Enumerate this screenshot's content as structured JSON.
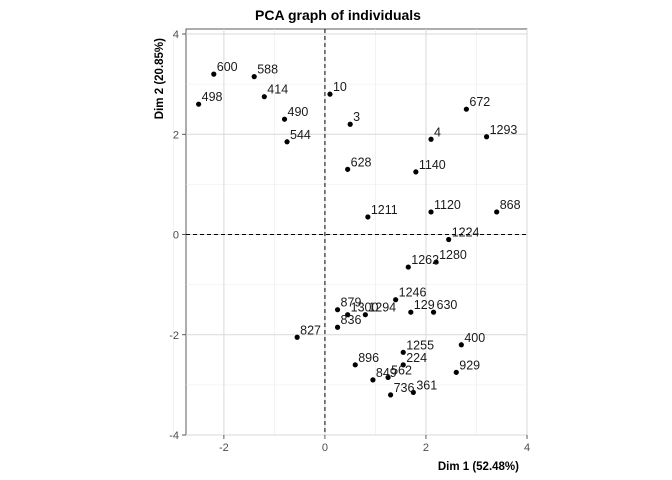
{
  "chart_data": {
    "type": "scatter",
    "title": "PCA graph of individuals",
    "xlabel": "Dim 1 (52.48%)",
    "ylabel": "Dim 2 (20.85%)",
    "xlim": [
      -2.75,
      4.0
    ],
    "ylim": [
      -4.0,
      4.1
    ],
    "xticks": [
      -2,
      0,
      2,
      4
    ],
    "yticks": [
      -4,
      -2,
      0,
      2,
      4
    ],
    "reference_lines": {
      "x": 0,
      "y": 0,
      "style": "dashed"
    },
    "grid": true,
    "points": [
      {
        "label": "10",
        "x": 0.1,
        "y": 2.8
      },
      {
        "label": "3",
        "x": 0.5,
        "y": 2.2
      },
      {
        "label": "4",
        "x": 2.1,
        "y": 1.9
      },
      {
        "label": "672",
        "x": 2.8,
        "y": 2.5
      },
      {
        "label": "628",
        "x": 0.45,
        "y": 1.3
      },
      {
        "label": "1140",
        "x": 1.8,
        "y": 1.25
      },
      {
        "label": "490",
        "x": -0.8,
        "y": 2.3
      },
      {
        "label": "588",
        "x": -1.4,
        "y": 3.15
      },
      {
        "label": "414",
        "x": -1.2,
        "y": 2.75
      },
      {
        "label": "544",
        "x": -0.75,
        "y": 1.85
      },
      {
        "label": "1224",
        "x": 2.45,
        "y": -0.1
      },
      {
        "label": "1246",
        "x": 1.4,
        "y": -1.3
      },
      {
        "label": "1255",
        "x": 1.55,
        "y": -2.35
      },
      {
        "label": "224",
        "x": 1.55,
        "y": -2.6
      },
      {
        "label": "562",
        "x": 1.25,
        "y": -2.85
      },
      {
        "label": "849",
        "x": 0.95,
        "y": -2.9
      },
      {
        "label": "736",
        "x": 1.3,
        "y": -3.2
      },
      {
        "label": "361",
        "x": 1.75,
        "y": -3.15
      },
      {
        "label": "896",
        "x": 0.6,
        "y": -2.6
      },
      {
        "label": "879",
        "x": 0.25,
        "y": -1.5
      },
      {
        "label": "827",
        "x": -0.55,
        "y": -2.05
      },
      {
        "label": "1300",
        "x": 0.45,
        "y": -1.6
      },
      {
        "label": "1294",
        "x": 0.8,
        "y": -1.6
      },
      {
        "label": "129",
        "x": 1.7,
        "y": -1.55
      },
      {
        "label": "630",
        "x": 2.15,
        "y": -1.55
      },
      {
        "label": "400",
        "x": 2.7,
        "y": -2.2
      },
      {
        "label": "929",
        "x": 2.6,
        "y": -2.75
      },
      {
        "label": "836",
        "x": 0.25,
        "y": -1.85
      },
      {
        "label": "1211",
        "x": 0.85,
        "y": 0.35
      },
      {
        "label": "1120",
        "x": 2.1,
        "y": 0.45
      },
      {
        "label": "1262",
        "x": 1.65,
        "y": -0.65
      },
      {
        "label": "1280",
        "x": 2.2,
        "y": -0.55
      },
      {
        "label": "600",
        "x": -2.2,
        "y": 3.2
      },
      {
        "label": "498",
        "x": -2.5,
        "y": 2.6
      },
      {
        "label": "1293",
        "x": 3.2,
        "y": 1.95
      },
      {
        "label": "868",
        "x": 3.4,
        "y": 0.45
      }
    ]
  }
}
